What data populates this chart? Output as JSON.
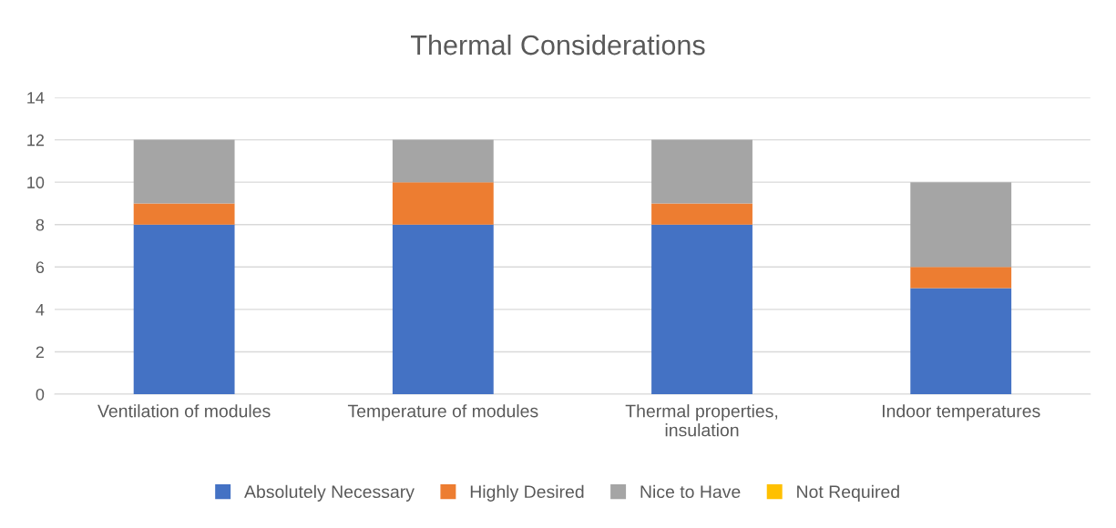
{
  "chart_data": {
    "type": "bar",
    "title": "Thermal Considerations",
    "stacked": true,
    "categories": [
      "Ventilation of modules",
      "Temperature of modules",
      "Thermal properties,\ninsulation",
      "Indoor temperatures"
    ],
    "series": [
      {
        "name": "Absolutely Necessary",
        "color": "#4472c4",
        "values": [
          8,
          8,
          8,
          5
        ]
      },
      {
        "name": "Highly Desired",
        "color": "#ed7d31",
        "values": [
          1,
          2,
          1,
          1
        ]
      },
      {
        "name": "Nice to Have",
        "color": "#a5a5a5",
        "values": [
          3,
          2,
          3,
          4
        ]
      },
      {
        "name": "Not Required",
        "color": "#ffc000",
        "values": [
          0,
          0,
          0,
          0
        ]
      }
    ],
    "ylim": [
      0,
      14
    ],
    "yticks": [
      0,
      2,
      4,
      6,
      8,
      10,
      12,
      14
    ],
    "grid": "y",
    "legend": "bottom"
  }
}
